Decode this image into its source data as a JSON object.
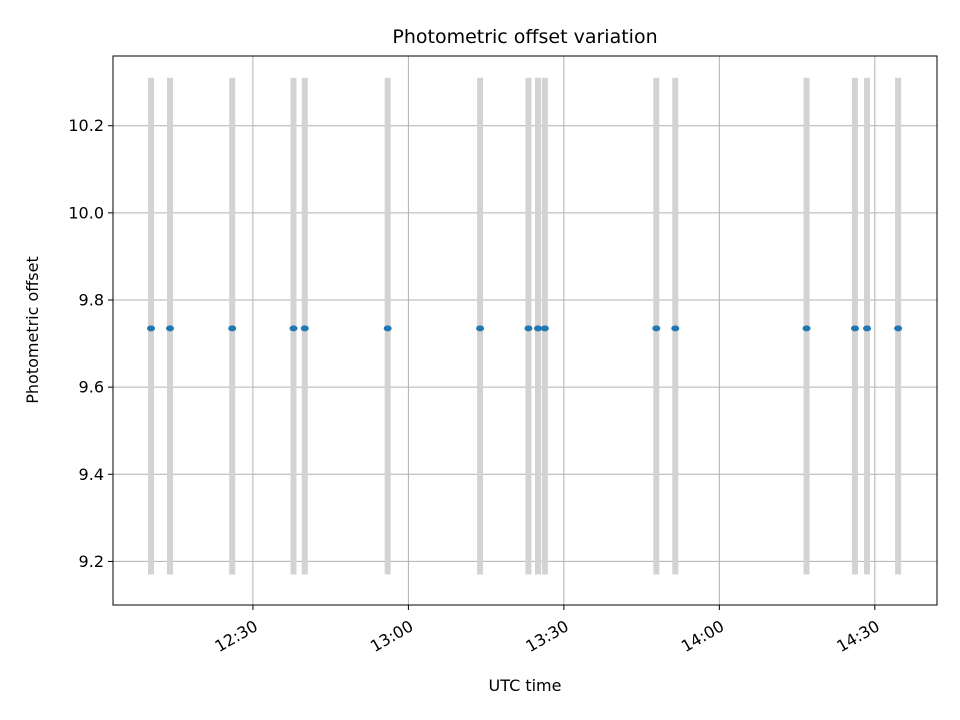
{
  "chart_data": {
    "type": "scatter",
    "title": "Photometric offset variation",
    "xlabel": "UTC time",
    "ylabel": "Photometric offset",
    "x_axis_type": "time",
    "xlim": [
      "12:03:00",
      "14:42:00"
    ],
    "ylim": [
      9.1,
      10.36
    ],
    "x_ticks": [
      "12:30",
      "13:00",
      "13:30",
      "14:00",
      "14:30"
    ],
    "y_ticks": [
      9.2,
      9.4,
      9.6,
      9.8,
      10.0,
      10.2
    ],
    "y_tick_labels": [
      "9.2",
      "9.4",
      "9.6",
      "9.8",
      "10.0",
      "10.2"
    ],
    "grid": true,
    "point_color": "#1f77b4",
    "band_color": "#d3d3d3",
    "band_range": [
      9.17,
      10.31
    ],
    "points": [
      {
        "x": "12:10:20",
        "y": 9.735
      },
      {
        "x": "12:14:00",
        "y": 9.735
      },
      {
        "x": "12:26:00",
        "y": 9.735
      },
      {
        "x": "12:37:50",
        "y": 9.735
      },
      {
        "x": "12:40:00",
        "y": 9.735
      },
      {
        "x": "12:56:00",
        "y": 9.735
      },
      {
        "x": "13:13:50",
        "y": 9.735
      },
      {
        "x": "13:23:10",
        "y": 9.735
      },
      {
        "x": "13:25:00",
        "y": 9.735
      },
      {
        "x": "13:26:20",
        "y": 9.735
      },
      {
        "x": "13:47:50",
        "y": 9.735
      },
      {
        "x": "13:51:30",
        "y": 9.735
      },
      {
        "x": "14:16:50",
        "y": 9.735
      },
      {
        "x": "14:26:10",
        "y": 9.735
      },
      {
        "x": "14:28:30",
        "y": 9.735
      },
      {
        "x": "14:34:30",
        "y": 9.735
      }
    ]
  }
}
